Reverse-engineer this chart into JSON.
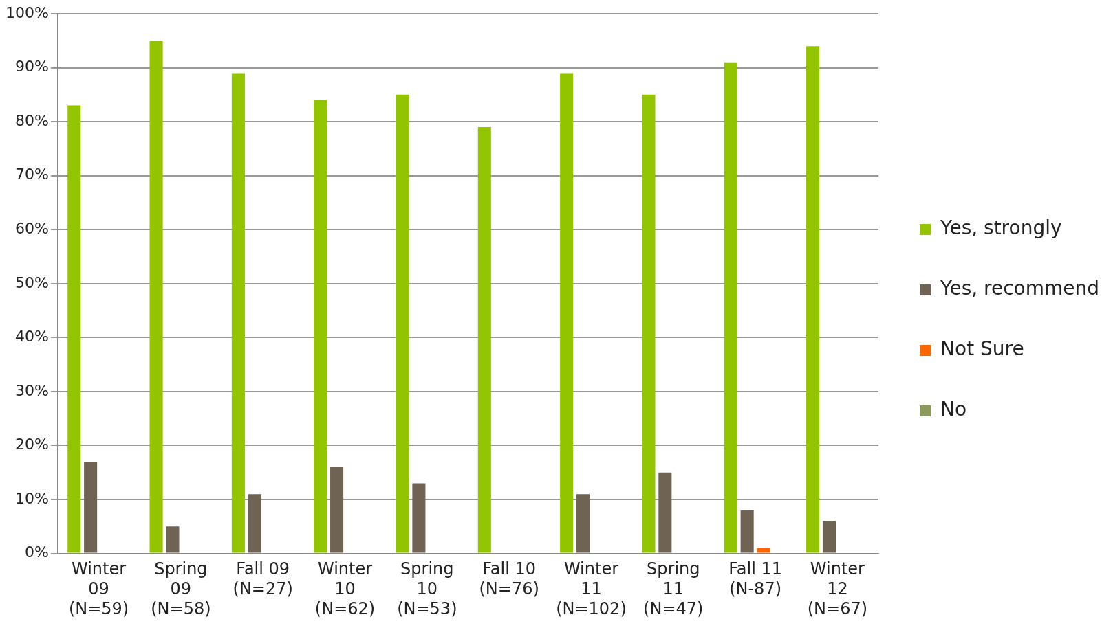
{
  "chart_data": {
    "type": "bar",
    "categories": [
      "Winter 09 (N=59)",
      "Spring 09 (N=58)",
      "Fall 09 (N=27)",
      "Winter 10 (N=62)",
      "Spring 10 (N=53)",
      "Fall 10 (N=76)",
      "Winter 11 (N=102)",
      "Spring 11 (N=47)",
      "Fall 11 (N-87)",
      "Winter 12 (N=67)"
    ],
    "series": [
      {
        "name": "Yes, strongly",
        "color": "#92c400",
        "values": [
          83,
          95,
          89,
          84,
          85,
          79,
          89,
          85,
          91,
          94
        ]
      },
      {
        "name": "Yes, recommend",
        "color": "#6f6454",
        "values": [
          17,
          5,
          11,
          16,
          13,
          0,
          11,
          15,
          8,
          6
        ]
      },
      {
        "name": "Not Sure",
        "color": "#ff6600",
        "values": [
          0,
          0,
          0,
          0,
          0,
          0,
          0,
          0,
          1,
          0
        ]
      },
      {
        "name": "No",
        "color": "#8c9a5a",
        "values": [
          0,
          0,
          0,
          0,
          0,
          0,
          0,
          0,
          0,
          0
        ]
      }
    ],
    "ylim": [
      0,
      100
    ],
    "yticks": [
      {
        "value": 0,
        "label": "0%"
      },
      {
        "value": 10,
        "label": "10%"
      },
      {
        "value": 20,
        "label": "20%"
      },
      {
        "value": 30,
        "label": "30%"
      },
      {
        "value": 40,
        "label": "40%"
      },
      {
        "value": 50,
        "label": "50%"
      },
      {
        "value": 60,
        "label": "60%"
      },
      {
        "value": 70,
        "label": "70%"
      },
      {
        "value": 80,
        "label": "80%"
      },
      {
        "value": 90,
        "label": "90%"
      },
      {
        "value": 100,
        "label": "100%"
      }
    ],
    "grid": "y",
    "legend": "right"
  }
}
